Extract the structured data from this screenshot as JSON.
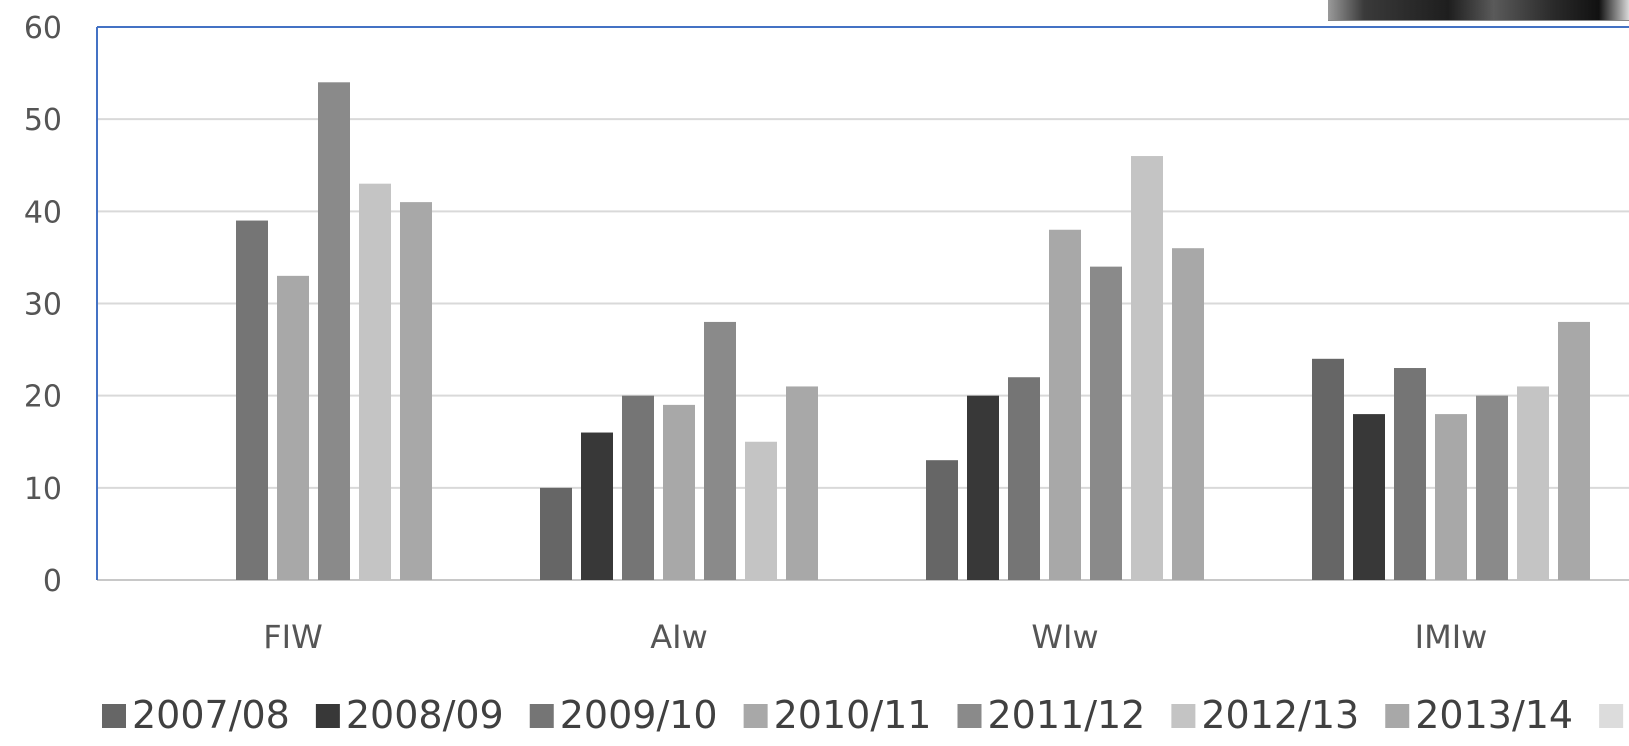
{
  "chart_data": {
    "type": "bar",
    "categories": [
      "FIW",
      "AIw",
      "WIw",
      "IMIw"
    ],
    "series": [
      {
        "name": "2007/08",
        "color": "#666666",
        "values": [
          null,
          10,
          13,
          24
        ]
      },
      {
        "name": "2008/09",
        "color": "#383838",
        "values": [
          null,
          16,
          20,
          18
        ]
      },
      {
        "name": "2009/10",
        "color": "#757575",
        "values": [
          39,
          20,
          22,
          23
        ]
      },
      {
        "name": "2010/11",
        "color": "#a8a8a8",
        "values": [
          33,
          19,
          38,
          18
        ]
      },
      {
        "name": "2011/12",
        "color": "#8a8a8a",
        "values": [
          54,
          28,
          34,
          20
        ]
      },
      {
        "name": "2012/13",
        "color": "#c4c4c4",
        "values": [
          43,
          15,
          46,
          21
        ]
      },
      {
        "name": "2013/14",
        "color": "#a8a8a8",
        "values": [
          41,
          21,
          36,
          28
        ]
      },
      {
        "name": "",
        "color": "#dcdcdc",
        "values": [
          null,
          null,
          null,
          null
        ]
      }
    ],
    "ylim": [
      0,
      60
    ],
    "yticks": [
      0,
      10,
      20,
      30,
      40,
      50,
      60
    ],
    "grid": true,
    "legend_position": "bottom",
    "title": "",
    "xlabel": "",
    "ylabel": "",
    "colors": {
      "gridline": "#d9d9d9",
      "plot_border": "#4472c4",
      "axis_line": "#c8c8c8"
    }
  }
}
